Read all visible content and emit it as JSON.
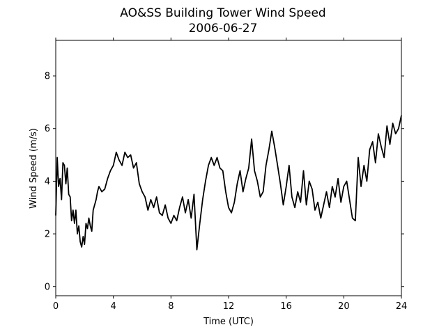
{
  "chart_data": {
    "type": "line",
    "title": "AO&SS Building Tower Wind Speed",
    "subtitle": "2006-06-27",
    "xlabel": "Time (UTC)",
    "ylabel": "Wind Speed (m/s)",
    "xlim": [
      0,
      24
    ],
    "ylim": [
      -0.35,
      9.35
    ],
    "x_ticks": [
      0,
      4,
      8,
      12,
      16,
      20,
      24
    ],
    "y_ticks": [
      0,
      2,
      4,
      6,
      8
    ],
    "grid": false,
    "legend": "none",
    "line_color": "#000000",
    "series": [
      {
        "x": [
          0.0,
          0.1,
          0.2,
          0.3,
          0.4,
          0.5,
          0.6,
          0.7,
          0.8,
          0.9,
          1.0,
          1.1,
          1.2,
          1.3,
          1.4,
          1.5,
          1.6,
          1.7,
          1.8,
          1.9,
          2.0,
          2.1,
          2.2,
          2.3,
          2.4,
          2.5,
          2.6,
          2.7,
          2.8,
          2.9,
          3.0,
          3.2,
          3.4,
          3.6,
          3.8,
          4.0,
          4.2,
          4.4,
          4.6,
          4.8,
          5.0,
          5.2,
          5.4,
          5.6,
          5.8,
          6.0,
          6.2,
          6.4,
          6.6,
          6.8,
          7.0,
          7.2,
          7.4,
          7.6,
          7.8,
          8.0,
          8.2,
          8.4,
          8.6,
          8.8,
          9.0,
          9.2,
          9.4,
          9.6,
          9.8,
          10.0,
          10.2,
          10.4,
          10.6,
          10.8,
          11.0,
          11.2,
          11.4,
          11.6,
          11.8,
          12.0,
          12.2,
          12.4,
          12.6,
          12.8,
          13.0,
          13.2,
          13.4,
          13.6,
          13.8,
          14.0,
          14.2,
          14.4,
          14.6,
          14.8,
          15.0,
          15.2,
          15.4,
          15.6,
          15.8,
          16.0,
          16.2,
          16.4,
          16.6,
          16.8,
          17.0,
          17.2,
          17.4,
          17.6,
          17.8,
          18.0,
          18.2,
          18.4,
          18.6,
          18.8,
          19.0,
          19.2,
          19.4,
          19.6,
          19.8,
          20.0,
          20.2,
          20.4,
          20.6,
          20.8,
          21.0,
          21.2,
          21.4,
          21.6,
          21.8,
          22.0,
          22.2,
          22.4,
          22.6,
          22.8,
          23.0,
          23.2,
          23.4,
          23.6,
          23.8,
          24.0
        ],
        "y": [
          2.7,
          4.9,
          3.8,
          4.1,
          3.3,
          4.7,
          4.6,
          3.9,
          4.5,
          3.5,
          3.4,
          2.5,
          2.9,
          2.4,
          2.9,
          2.0,
          2.3,
          1.7,
          1.5,
          1.9,
          1.6,
          2.4,
          2.2,
          2.6,
          2.3,
          2.1,
          2.9,
          3.1,
          3.3,
          3.6,
          3.8,
          3.6,
          3.7,
          4.1,
          4.4,
          4.6,
          5.1,
          4.8,
          4.6,
          5.1,
          4.9,
          5.0,
          4.5,
          4.7,
          3.9,
          3.6,
          3.4,
          2.9,
          3.3,
          3.0,
          3.4,
          2.8,
          2.7,
          3.1,
          2.6,
          2.4,
          2.7,
          2.5,
          3.0,
          3.4,
          2.8,
          3.3,
          2.6,
          3.5,
          1.4,
          2.4,
          3.3,
          4.0,
          4.6,
          4.9,
          4.6,
          4.9,
          4.5,
          4.4,
          3.6,
          3.0,
          2.8,
          3.2,
          3.9,
          4.4,
          3.6,
          4.1,
          4.5,
          5.6,
          4.4,
          4.0,
          3.4,
          3.6,
          4.6,
          5.2,
          5.9,
          5.3,
          4.6,
          3.9,
          3.1,
          3.8,
          4.6,
          3.4,
          3.0,
          3.6,
          3.2,
          4.4,
          3.1,
          4.0,
          3.7,
          2.9,
          3.2,
          2.6,
          3.1,
          3.6,
          3.0,
          3.8,
          3.4,
          4.1,
          3.2,
          3.8,
          4.0,
          3.3,
          2.6,
          2.5,
          4.9,
          3.8,
          4.6,
          4.0,
          5.2,
          5.5,
          4.7,
          5.8,
          5.3,
          4.9,
          6.1,
          5.4,
          6.2,
          5.8,
          6.0,
          6.5
        ]
      }
    ]
  }
}
